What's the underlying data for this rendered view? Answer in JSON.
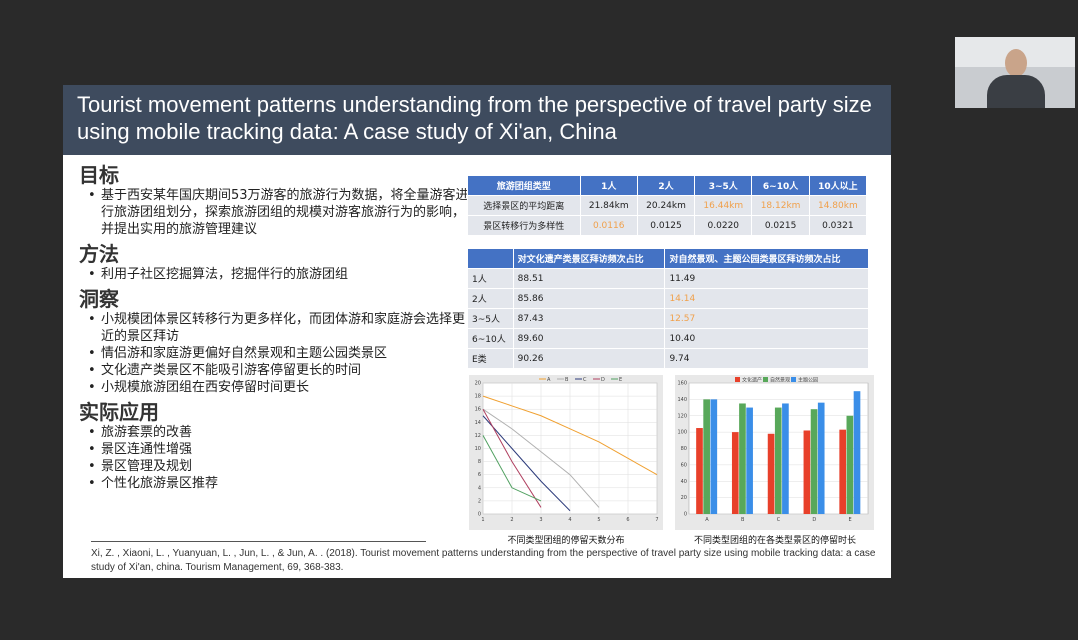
{
  "slide": {
    "title": "Tourist movement patterns understanding from the perspective of travel party size using mobile tracking data: A case study of Xi'an, China",
    "sections": [
      {
        "heading": "目标",
        "bullets": [
          "基于西安某年国庆期间53万游客的旅游行为数据，将全量游客进行旅游团组划分，探索旅游团组的规模对游客旅游行为的影响，并提出实用的旅游管理建议"
        ]
      },
      {
        "heading": "方法",
        "bullets": [
          "利用子社区挖掘算法，挖掘伴行的旅游团组"
        ]
      },
      {
        "heading": "洞察",
        "bullets": [
          "小规模团体景区转移行为更多样化，而团体游和家庭游会选择更近的景区拜访",
          "情侣游和家庭游更偏好自然景观和主题公园类景区",
          "文化遗产类景区不能吸引游客停留更长的时间",
          "小规模旅游团组在西安停留时间更长"
        ]
      },
      {
        "heading": "实际应用",
        "bullets": [
          "旅游套票的改善",
          "景区连通性增强",
          "景区管理及规划",
          "个性化旅游景区推荐"
        ]
      }
    ],
    "table1": {
      "header": [
        "旅游团组类型",
        "1人",
        "2人",
        "3~5人",
        "6~10人",
        "10人以上"
      ],
      "rows": [
        [
          {
            "text": "选择景区的平均距离"
          },
          {
            "text": "21.84km"
          },
          {
            "text": "20.24km"
          },
          {
            "text": "16.44km",
            "color": "#f0a04b"
          },
          {
            "text": "18.12km",
            "color": "#f0a04b"
          },
          {
            "text": "14.80km",
            "color": "#f0a04b"
          }
        ],
        [
          {
            "text": "景区转移行为多样性"
          },
          {
            "text": "0.0116",
            "color": "#f0a04b"
          },
          {
            "text": "0.0125"
          },
          {
            "text": "0.0220"
          },
          {
            "text": "0.0215"
          },
          {
            "text": "0.0321"
          }
        ]
      ]
    },
    "table2": {
      "header": [
        null,
        "对文化遗产类景区拜访频次占比",
        "对自然景观、主题公园类景区拜访频次占比"
      ],
      "rows": [
        [
          {
            "text": "1人"
          },
          {
            "text": "88.51"
          },
          {
            "text": "11.49"
          }
        ],
        [
          {
            "text": "2人"
          },
          {
            "text": "85.86"
          },
          {
            "text": "14.14",
            "color": "#f0a04b"
          }
        ],
        [
          {
            "text": "3~5人"
          },
          {
            "text": "87.43"
          },
          {
            "text": "12.57",
            "color": "#f0a04b"
          }
        ],
        [
          {
            "text": "6~10人"
          },
          {
            "text": "89.60"
          },
          {
            "text": "10.40"
          }
        ],
        [
          {
            "text": "E类"
          },
          {
            "text": "90.26"
          },
          {
            "text": "9.74"
          }
        ]
      ]
    },
    "caption1": "不同类型团组的停留天数分布",
    "caption2": "不同类型团组的在各类型景区的停留时长",
    "citation": "Xi, Z. , Xiaoni, L. , Yuanyuan, L. , Jun, L. , & Jun, A. . (2018). Tourist movement patterns understanding from the perspective of travel party size using mobile tracking data: a case study of Xi'an, china. Tourism Management, 69, 368-383."
  },
  "chart_data": [
    {
      "type": "line",
      "x": [
        1,
        2,
        3,
        4,
        5,
        6,
        7
      ],
      "xlim": [
        1,
        7
      ],
      "xticks": [
        1,
        2,
        3,
        4,
        5,
        6,
        7
      ],
      "ylim": [
        0,
        20
      ],
      "yticks": [
        0,
        2,
        4,
        6,
        8,
        10,
        12,
        14,
        16,
        18,
        20
      ],
      "grid": true,
      "series": [
        {
          "name": "A",
          "color": "#f0a030",
          "values": [
            18,
            16.5,
            15,
            13,
            11,
            8.5,
            6
          ]
        },
        {
          "name": "B",
          "color": "#b0b0b0",
          "values": [
            16,
            13,
            9.5,
            6,
            1,
            null,
            null
          ]
        },
        {
          "name": "C",
          "color": "#2b3a7a",
          "values": [
            15,
            10,
            5,
            0.5,
            null,
            null,
            null
          ]
        },
        {
          "name": "D",
          "color": "#b04060",
          "values": [
            16,
            8,
            1,
            null,
            null,
            null,
            null
          ]
        },
        {
          "name": "E",
          "color": "#50a060",
          "values": [
            12,
            4,
            2,
            null,
            null,
            null,
            null
          ]
        }
      ]
    },
    {
      "type": "bar",
      "categories": [
        "A",
        "B",
        "C",
        "D",
        "E"
      ],
      "ylim": [
        0,
        160
      ],
      "yticks": [
        0,
        20,
        40,
        60,
        80,
        100,
        120,
        140,
        160
      ],
      "grid": true,
      "series": [
        {
          "name": "文化遗产",
          "color": "#e8402a",
          "values": [
            105,
            100,
            98,
            102,
            103
          ]
        },
        {
          "name": "自然景观",
          "color": "#58a85a",
          "values": [
            140,
            135,
            130,
            128,
            120
          ]
        },
        {
          "name": "主题公园",
          "color": "#3a8ee8",
          "values": [
            140,
            130,
            135,
            136,
            150
          ]
        }
      ]
    }
  ]
}
